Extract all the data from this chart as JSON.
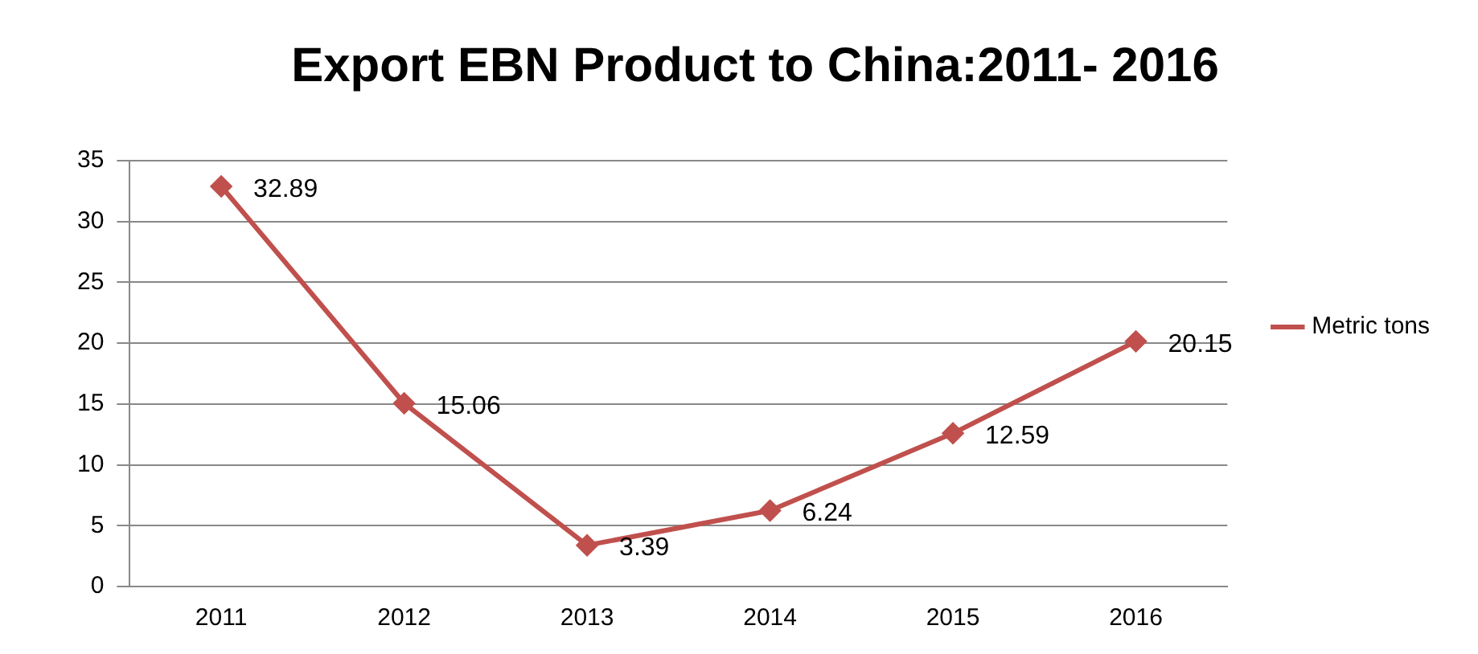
{
  "chart_data": {
    "type": "line",
    "title": "Export EBN Product to China:2011- 2016",
    "categories": [
      "2011",
      "2012",
      "2013",
      "2014",
      "2015",
      "2016"
    ],
    "series": [
      {
        "name": "Metric tons",
        "color": "#c0504d",
        "values": [
          32.89,
          15.06,
          3.39,
          6.24,
          12.59,
          20.15
        ]
      }
    ],
    "ylim": [
      0,
      35
    ],
    "yticks": [
      0,
      5,
      10,
      15,
      20,
      25,
      30,
      35
    ],
    "grid": "y",
    "legend": "right",
    "marker": "diamond",
    "line_style": "solid",
    "data_labels": true
  }
}
